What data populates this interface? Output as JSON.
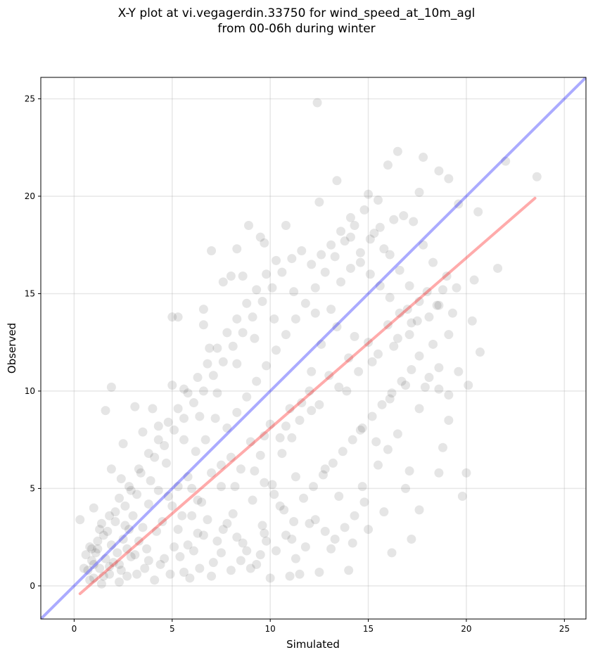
{
  "chart_data": {
    "type": "scatter",
    "title_line1": "X-Y plot at vi.vegagerdin.33750 for wind_speed_at_10m_agl",
    "title_line2": "from 00-06h during winter",
    "xlabel": "Simulated",
    "ylabel": "Observed",
    "xlim": [
      -1.7,
      26.1
    ],
    "ylim": [
      -1.7,
      26.1
    ],
    "xticks": [
      0,
      5,
      10,
      15,
      20,
      25
    ],
    "yticks": [
      0,
      5,
      10,
      15,
      20,
      25
    ],
    "grid": true,
    "point_color": "#000000",
    "point_alpha": 0.1,
    "reference_line": {
      "from": [
        -1.7,
        -1.7
      ],
      "to": [
        26.1,
        26.1
      ],
      "color": "#0000ff",
      "alpha": 0.33
    },
    "fit_line": {
      "from": [
        0.3,
        -0.4
      ],
      "to": [
        23.5,
        19.9
      ],
      "color": "#ff0000",
      "alpha": 0.33
    },
    "points": [
      [
        0.3,
        3.4
      ],
      [
        1.9,
        10.2
      ],
      [
        1.6,
        9.0
      ],
      [
        3.1,
        9.2
      ],
      [
        12.4,
        24.8
      ],
      [
        16.5,
        22.3
      ],
      [
        17.8,
        22.0
      ],
      [
        22.0,
        21.8
      ],
      [
        23.6,
        21.0
      ],
      [
        16.0,
        21.6
      ],
      [
        18.6,
        21.3
      ],
      [
        19.1,
        20.9
      ],
      [
        13.4,
        20.8
      ],
      [
        15.0,
        20.1
      ],
      [
        17.6,
        20.2
      ],
      [
        19.6,
        19.6
      ],
      [
        20.6,
        19.2
      ],
      [
        12.5,
        19.7
      ],
      [
        14.1,
        18.9
      ],
      [
        15.5,
        19.8
      ],
      [
        8.9,
        18.5
      ],
      [
        10.8,
        18.5
      ],
      [
        9.5,
        17.9
      ],
      [
        7.0,
        17.2
      ],
      [
        8.3,
        17.3
      ],
      [
        9.7,
        17.6
      ],
      [
        21.6,
        16.3
      ],
      [
        20.4,
        15.7
      ],
      [
        8.0,
        15.9
      ],
      [
        7.6,
        15.6
      ],
      [
        8.6,
        15.9
      ],
      [
        6.6,
        14.2
      ],
      [
        6.6,
        13.4
      ],
      [
        5.3,
        13.8
      ],
      [
        5.0,
        13.8
      ],
      [
        6.9,
        12.2
      ],
      [
        20.7,
        12.0
      ],
      [
        20.3,
        13.6
      ],
      [
        20.1,
        10.3
      ],
      [
        19.8,
        4.6
      ],
      [
        20.0,
        5.8
      ],
      [
        18.8,
        7.1
      ],
      [
        18.6,
        5.8
      ],
      [
        17.6,
        9.1
      ],
      [
        17.6,
        3.9
      ],
      [
        17.2,
        2.4
      ],
      [
        16.2,
        1.7
      ],
      [
        14.0,
        0.8
      ],
      [
        12.5,
        0.7
      ],
      [
        11.5,
        0.6
      ],
      [
        10.0,
        0.4
      ],
      [
        11.0,
        0.5
      ],
      [
        1.9,
        6.0
      ],
      [
        3.5,
        7.9
      ],
      [
        2.5,
        7.3
      ],
      [
        4.3,
        8.2
      ],
      [
        4.0,
        9.1
      ],
      [
        5.0,
        10.3
      ],
      [
        5.6,
        10.1
      ],
      [
        9.7,
        7.7
      ],
      [
        8.2,
        5.1
      ],
      [
        7.5,
        6.2
      ],
      [
        6.3,
        4.4
      ],
      [
        6.0,
        3.6
      ],
      [
        10.5,
        4.1
      ],
      [
        12.0,
        3.2
      ],
      [
        11.1,
        2.4
      ],
      [
        9.7,
        2.7
      ],
      [
        13.1,
        1.9
      ],
      [
        14.2,
        2.2
      ],
      [
        15.0,
        2.9
      ],
      [
        15.8,
        3.8
      ],
      [
        16.9,
        5.0
      ],
      [
        17.1,
        5.9
      ],
      [
        13.5,
        4.6
      ],
      [
        12.8,
        6.0
      ],
      [
        14.7,
        5.1
      ],
      [
        11.3,
        5.6
      ],
      [
        10.8,
        8.2
      ],
      [
        12.1,
        9.0
      ],
      [
        13.9,
        10.0
      ],
      [
        14.6,
        8.0
      ],
      [
        15.4,
        7.4
      ],
      [
        16.1,
        9.6
      ],
      [
        16.9,
        10.3
      ],
      [
        17.9,
        10.2
      ],
      [
        18.3,
        12.4
      ],
      [
        19.1,
        12.9
      ],
      [
        18.6,
        14.4
      ],
      [
        17.2,
        13.5
      ],
      [
        16.3,
        12.3
      ],
      [
        15.2,
        11.5
      ],
      [
        14.3,
        12.8
      ],
      [
        13.4,
        13.3
      ],
      [
        12.3,
        14.0
      ],
      [
        11.2,
        15.1
      ],
      [
        10.2,
        13.7
      ],
      [
        9.2,
        12.7
      ],
      [
        8.3,
        11.4
      ],
      [
        7.3,
        9.9
      ],
      [
        6.4,
        8.7
      ],
      [
        5.6,
        7.5
      ],
      [
        4.7,
        6.3
      ],
      [
        3.9,
        5.4
      ],
      [
        3.2,
        4.7
      ],
      [
        2.6,
        4.1
      ],
      [
        2.1,
        3.3
      ],
      [
        1.5,
        2.6
      ],
      [
        1.2,
        1.9
      ],
      [
        0.9,
        1.3
      ],
      [
        0.7,
        0.8
      ],
      [
        1.0,
        0.4
      ],
      [
        1.4,
        0.1
      ],
      [
        1.8,
        0.6
      ],
      [
        2.3,
        1.1
      ],
      [
        2.7,
        0.5
      ],
      [
        3.1,
        1.6
      ],
      [
        3.6,
        0.9
      ],
      [
        4.1,
        0.3
      ],
      [
        4.6,
        1.4
      ],
      [
        5.1,
        2.0
      ],
      [
        5.6,
        0.7
      ],
      [
        6.1,
        1.8
      ],
      [
        6.6,
        2.6
      ],
      [
        7.1,
        1.2
      ],
      [
        7.6,
        2.9
      ],
      [
        8.1,
        3.7
      ],
      [
        8.6,
        2.2
      ],
      [
        9.1,
        4.4
      ],
      [
        9.6,
        3.1
      ],
      [
        10.1,
        5.2
      ],
      [
        10.6,
        6.8
      ],
      [
        11.1,
        7.6
      ],
      [
        11.6,
        9.4
      ],
      [
        12.1,
        11.0
      ],
      [
        12.6,
        12.4
      ],
      [
        13.1,
        14.2
      ],
      [
        13.6,
        15.6
      ],
      [
        14.1,
        16.3
      ],
      [
        14.6,
        17.1
      ],
      [
        15.1,
        17.8
      ],
      [
        15.6,
        18.4
      ],
      [
        16.1,
        17.0
      ],
      [
        16.6,
        16.2
      ],
      [
        17.1,
        15.4
      ],
      [
        17.6,
        14.6
      ],
      [
        18.1,
        13.8
      ],
      [
        18.6,
        11.2
      ],
      [
        19.1,
        9.8
      ],
      [
        19.6,
        11.0
      ],
      [
        1.1,
        1.7
      ],
      [
        1.3,
        0.9
      ],
      [
        1.6,
        1.4
      ],
      [
        1.9,
        2.1
      ],
      [
        2.2,
        1.7
      ],
      [
        2.5,
        2.4
      ],
      [
        2.8,
        2.9
      ],
      [
        1.0,
        1.1
      ],
      [
        0.8,
        0.3
      ],
      [
        1.5,
        0.5
      ],
      [
        2.0,
        1.2
      ],
      [
        2.4,
        0.8
      ],
      [
        2.9,
        1.5
      ],
      [
        3.3,
        2.3
      ],
      [
        3.7,
        1.9
      ],
      [
        4.2,
        2.8
      ],
      [
        1.2,
        2.3
      ],
      [
        0.9,
        1.9
      ],
      [
        1.7,
        2.8
      ],
      [
        2.1,
        3.8
      ],
      [
        2.6,
        3.1
      ],
      [
        3.0,
        3.6
      ],
      [
        3.5,
        3.0
      ],
      [
        1.4,
        3.2
      ],
      [
        1.0,
        4.0
      ],
      [
        0.6,
        1.6
      ],
      [
        0.5,
        0.9
      ],
      [
        1.8,
        1.0
      ],
      [
        2.3,
        0.2
      ],
      [
        2.7,
        1.9
      ],
      [
        3.2,
        0.6
      ],
      [
        3.8,
        1.3
      ],
      [
        4.4,
        1.1
      ],
      [
        4.9,
        0.6
      ],
      [
        5.4,
        1.5
      ],
      [
        5.9,
        0.4
      ],
      [
        6.4,
        0.9
      ],
      [
        7.0,
        0.5
      ],
      [
        7.5,
        1.7
      ],
      [
        8.0,
        0.8
      ],
      [
        8.5,
        1.3
      ],
      [
        9.0,
        0.9
      ],
      [
        9.5,
        1.6
      ],
      [
        4.5,
        3.3
      ],
      [
        5.0,
        4.1
      ],
      [
        5.5,
        3.6
      ],
      [
        6.0,
        5.0
      ],
      [
        6.5,
        4.3
      ],
      [
        7.0,
        5.8
      ],
      [
        7.5,
        5.1
      ],
      [
        8.0,
        6.6
      ],
      [
        8.5,
        6.0
      ],
      [
        9.0,
        7.4
      ],
      [
        9.5,
        6.7
      ],
      [
        10.0,
        8.3
      ],
      [
        10.5,
        7.6
      ],
      [
        11.0,
        9.1
      ],
      [
        11.5,
        8.5
      ],
      [
        12.0,
        10.0
      ],
      [
        12.5,
        9.3
      ],
      [
        13.0,
        10.8
      ],
      [
        13.5,
        10.2
      ],
      [
        14.0,
        11.7
      ],
      [
        14.5,
        11.0
      ],
      [
        15.0,
        12.5
      ],
      [
        15.5,
        11.9
      ],
      [
        16.0,
        13.4
      ],
      [
        16.5,
        12.7
      ],
      [
        17.0,
        14.2
      ],
      [
        17.5,
        13.6
      ],
      [
        18.0,
        15.1
      ],
      [
        18.5,
        14.4
      ],
      [
        19.0,
        15.9
      ],
      [
        19.5,
        15.3
      ],
      [
        7.8,
        8.1
      ],
      [
        8.3,
        8.9
      ],
      [
        8.8,
        9.7
      ],
      [
        9.3,
        10.5
      ],
      [
        9.8,
        11.3
      ],
      [
        10.3,
        12.1
      ],
      [
        10.8,
        12.9
      ],
      [
        11.3,
        13.7
      ],
      [
        11.8,
        14.5
      ],
      [
        12.3,
        15.3
      ],
      [
        12.8,
        16.1
      ],
      [
        13.3,
        16.9
      ],
      [
        13.8,
        17.7
      ],
      [
        14.3,
        18.5
      ],
      [
        14.8,
        19.3
      ],
      [
        15.3,
        18.1
      ],
      [
        15.8,
        17.3
      ],
      [
        16.3,
        18.8
      ],
      [
        16.8,
        19.0
      ],
      [
        17.3,
        18.7
      ],
      [
        17.8,
        17.5
      ],
      [
        18.3,
        16.6
      ],
      [
        18.8,
        15.2
      ],
      [
        19.3,
        14.0
      ],
      [
        6.2,
        6.9
      ],
      [
        6.7,
        7.5
      ],
      [
        7.2,
        8.6
      ],
      [
        5.8,
        5.6
      ],
      [
        5.3,
        5.1
      ],
      [
        4.8,
        4.6
      ],
      [
        4.3,
        4.9
      ],
      [
        3.8,
        4.2
      ],
      [
        3.4,
        5.8
      ],
      [
        2.9,
        4.9
      ],
      [
        2.4,
        5.5
      ],
      [
        4.1,
        6.6
      ],
      [
        4.6,
        7.2
      ],
      [
        5.1,
        8.0
      ],
      [
        5.6,
        8.6
      ],
      [
        6.1,
        9.4
      ],
      [
        6.6,
        10.0
      ],
      [
        7.1,
        10.8
      ],
      [
        7.6,
        11.5
      ],
      [
        8.1,
        12.3
      ],
      [
        8.6,
        13.0
      ],
      [
        9.1,
        13.8
      ],
      [
        9.6,
        14.6
      ],
      [
        10.1,
        15.3
      ],
      [
        10.6,
        16.1
      ],
      [
        11.1,
        16.8
      ],
      [
        11.6,
        17.2
      ],
      [
        12.1,
        16.5
      ],
      [
        12.6,
        17.0
      ],
      [
        13.1,
        17.5
      ],
      [
        13.6,
        18.2
      ],
      [
        14.1,
        17.9
      ],
      [
        14.6,
        16.6
      ],
      [
        15.1,
        16.0
      ],
      [
        15.6,
        15.4
      ],
      [
        16.1,
        14.8
      ],
      [
        16.6,
        14.0
      ],
      [
        17.1,
        12.9
      ],
      [
        17.6,
        11.8
      ],
      [
        18.1,
        10.7
      ],
      [
        18.6,
        10.1
      ],
      [
        19.1,
        8.5
      ],
      [
        9.2,
        5.9
      ],
      [
        9.7,
        5.3
      ],
      [
        10.2,
        4.7
      ],
      [
        10.7,
        3.9
      ],
      [
        11.2,
        3.3
      ],
      [
        11.7,
        4.5
      ],
      [
        12.2,
        5.1
      ],
      [
        12.7,
        5.7
      ],
      [
        13.2,
        6.3
      ],
      [
        13.7,
        6.9
      ],
      [
        14.2,
        7.5
      ],
      [
        14.7,
        8.1
      ],
      [
        15.2,
        8.7
      ],
      [
        15.7,
        9.3
      ],
      [
        16.2,
        9.9
      ],
      [
        16.7,
        10.5
      ],
      [
        17.2,
        11.1
      ],
      [
        15.5,
        6.2
      ],
      [
        16.0,
        7.0
      ],
      [
        16.5,
        7.8
      ],
      [
        14.8,
        4.3
      ],
      [
        14.3,
        3.6
      ],
      [
        13.8,
        3.0
      ],
      [
        13.3,
        2.4
      ],
      [
        12.8,
        2.8
      ],
      [
        12.3,
        3.4
      ],
      [
        11.8,
        2.0
      ],
      [
        11.3,
        1.4
      ],
      [
        10.8,
        2.6
      ],
      [
        10.3,
        1.8
      ],
      [
        9.8,
        2.3
      ],
      [
        9.3,
        1.1
      ],
      [
        8.8,
        1.8
      ],
      [
        8.3,
        2.5
      ],
      [
        7.8,
        3.2
      ],
      [
        7.3,
        2.3
      ],
      [
        6.8,
        3.4
      ],
      [
        6.3,
        2.7
      ],
      [
        5.8,
        2.1
      ],
      [
        5.3,
        2.9
      ],
      [
        0.8,
        2.0
      ],
      [
        1.3,
        2.9
      ],
      [
        1.8,
        3.6
      ],
      [
        2.3,
        4.5
      ],
      [
        2.8,
        5.1
      ],
      [
        3.3,
        6.0
      ],
      [
        3.8,
        6.8
      ],
      [
        4.3,
        7.5
      ],
      [
        4.8,
        8.4
      ],
      [
        5.3,
        9.1
      ],
      [
        5.8,
        9.9
      ],
      [
        6.3,
        10.7
      ],
      [
        6.8,
        11.4
      ],
      [
        7.3,
        12.2
      ],
      [
        7.8,
        13.0
      ],
      [
        8.3,
        13.7
      ],
      [
        8.8,
        14.5
      ],
      [
        9.3,
        15.2
      ],
      [
        9.8,
        16.0
      ],
      [
        10.3,
        16.7
      ]
    ]
  }
}
